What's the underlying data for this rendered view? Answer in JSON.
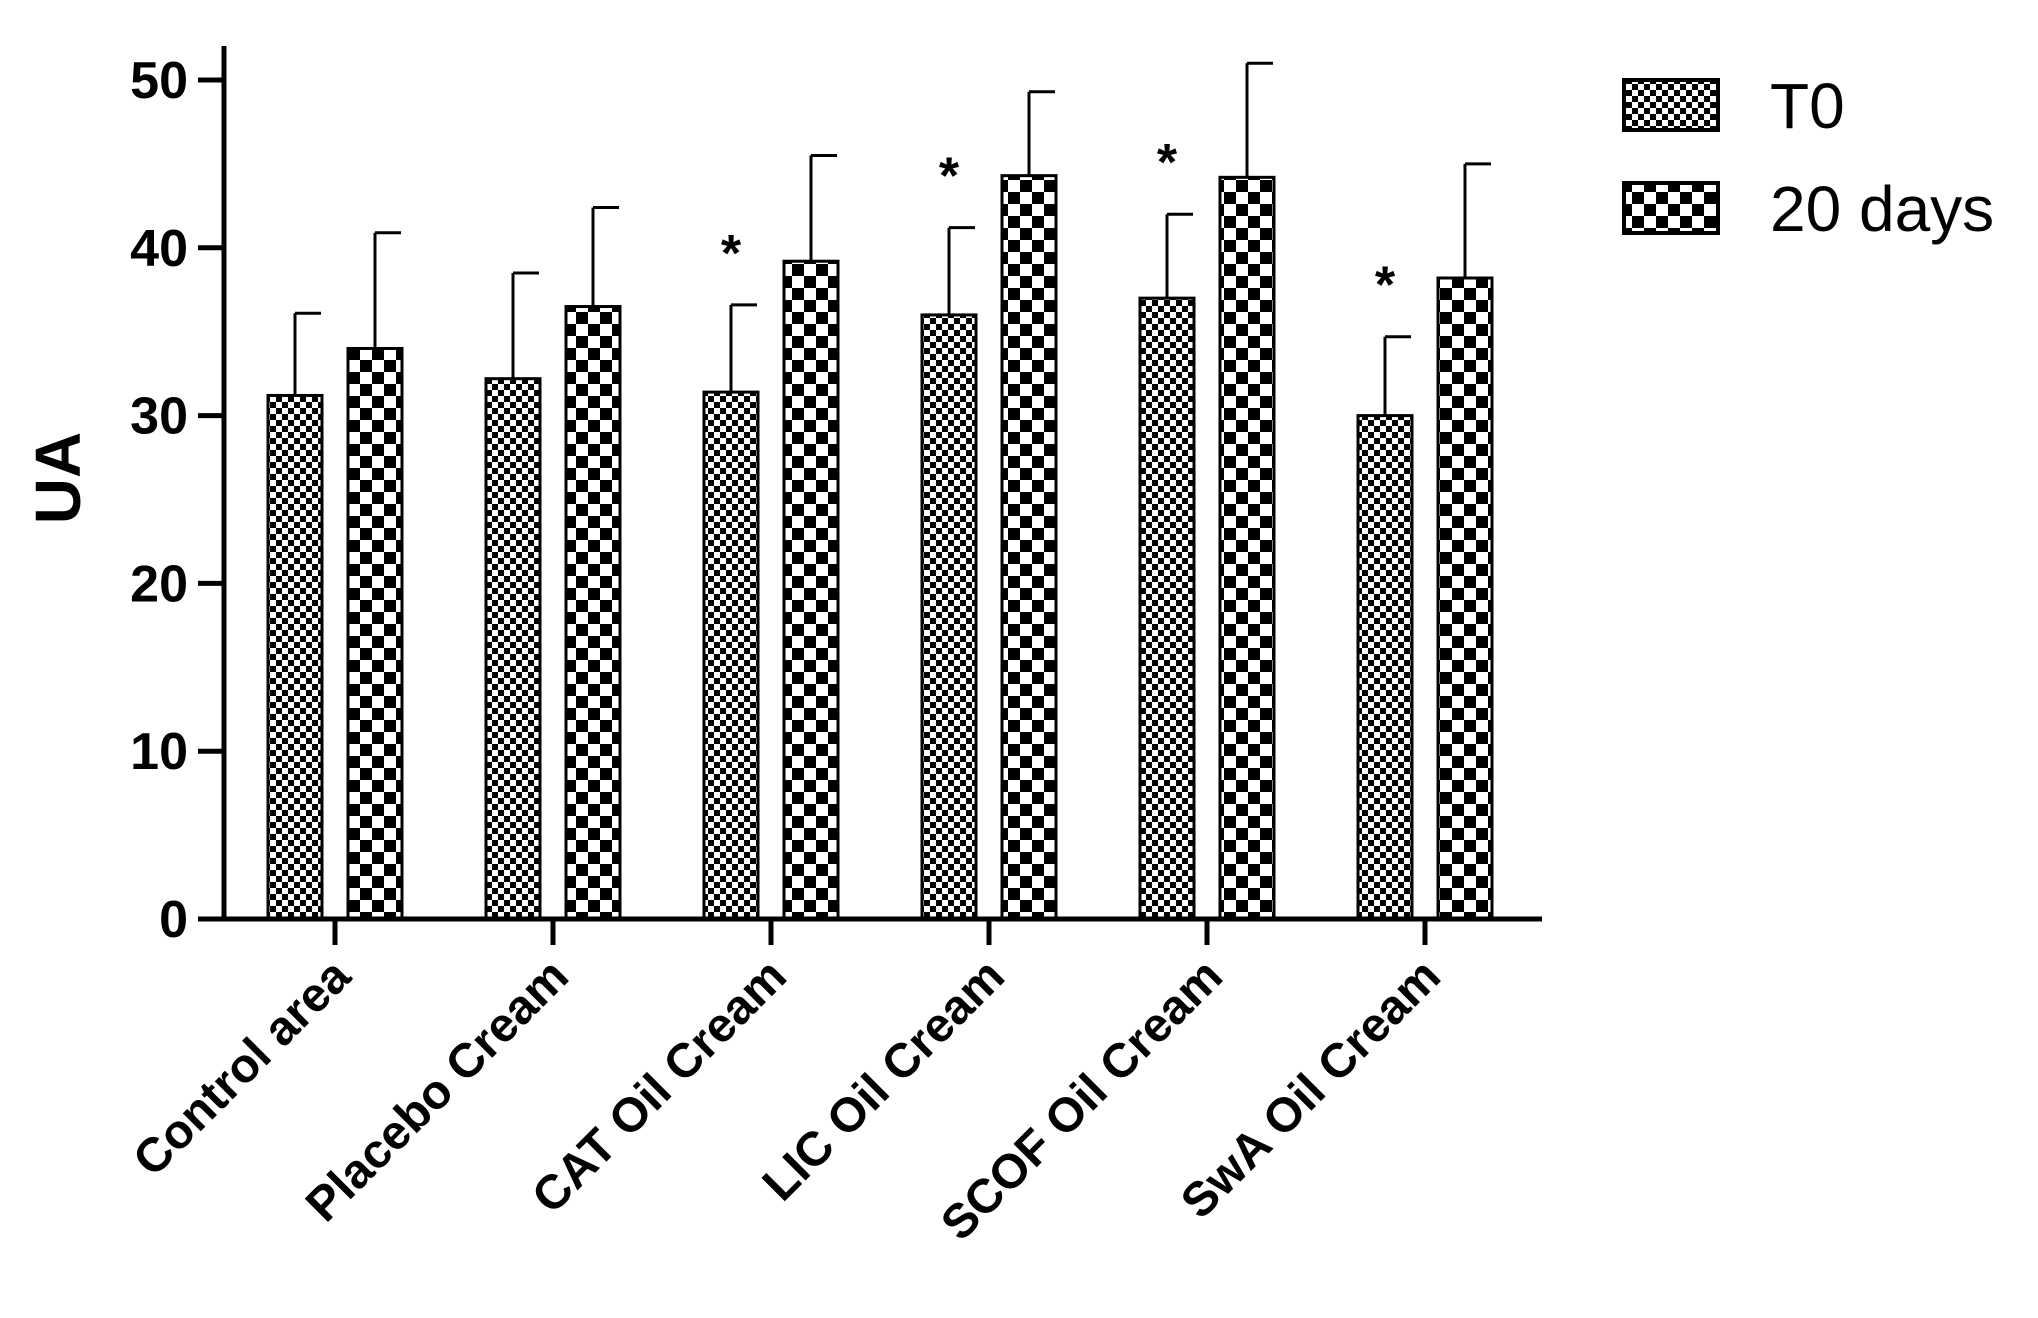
{
  "chart_data": {
    "type": "bar",
    "title": "",
    "xlabel": "",
    "ylabel": "UA",
    "ylim": [
      0,
      50
    ],
    "yticks": [
      "0",
      "10",
      "20",
      "30",
      "40",
      "50"
    ],
    "ytick_values": [
      0,
      10,
      20,
      30,
      40,
      50
    ],
    "categories": [
      "Control area",
      "Placebo Cream",
      "CAT Oil Cream",
      "LIC Oil Cream",
      "SCOF Oil Cream",
      "SwA Oil Cream"
    ],
    "series": [
      {
        "name": "T0",
        "pattern": "fine-checker",
        "values": [
          31.2,
          32.2,
          31.4,
          36.0,
          37.0,
          30.0
        ],
        "errors": [
          4.9,
          6.3,
          5.2,
          5.2,
          5.0,
          4.7
        ]
      },
      {
        "name": "20 days",
        "pattern": "coarse-checker",
        "values": [
          34.0,
          36.5,
          39.2,
          44.3,
          44.2,
          38.2
        ],
        "errors": [
          6.9,
          5.9,
          6.3,
          5.0,
          6.8,
          6.8
        ]
      }
    ],
    "annotations": [
      {
        "text": "*",
        "category": "CAT Oil Cream",
        "series": "T0"
      },
      {
        "text": "*",
        "category": "LIC Oil Cream",
        "series": "T0"
      },
      {
        "text": "*",
        "category": "SCOF Oil Cream",
        "series": "T0"
      },
      {
        "text": "*",
        "category": "SwA Oil Cream",
        "series": "T0"
      }
    ],
    "grid": false,
    "legend_position": "top-right",
    "colors": {
      "ink": "#000000",
      "background": "#ffffff"
    }
  }
}
